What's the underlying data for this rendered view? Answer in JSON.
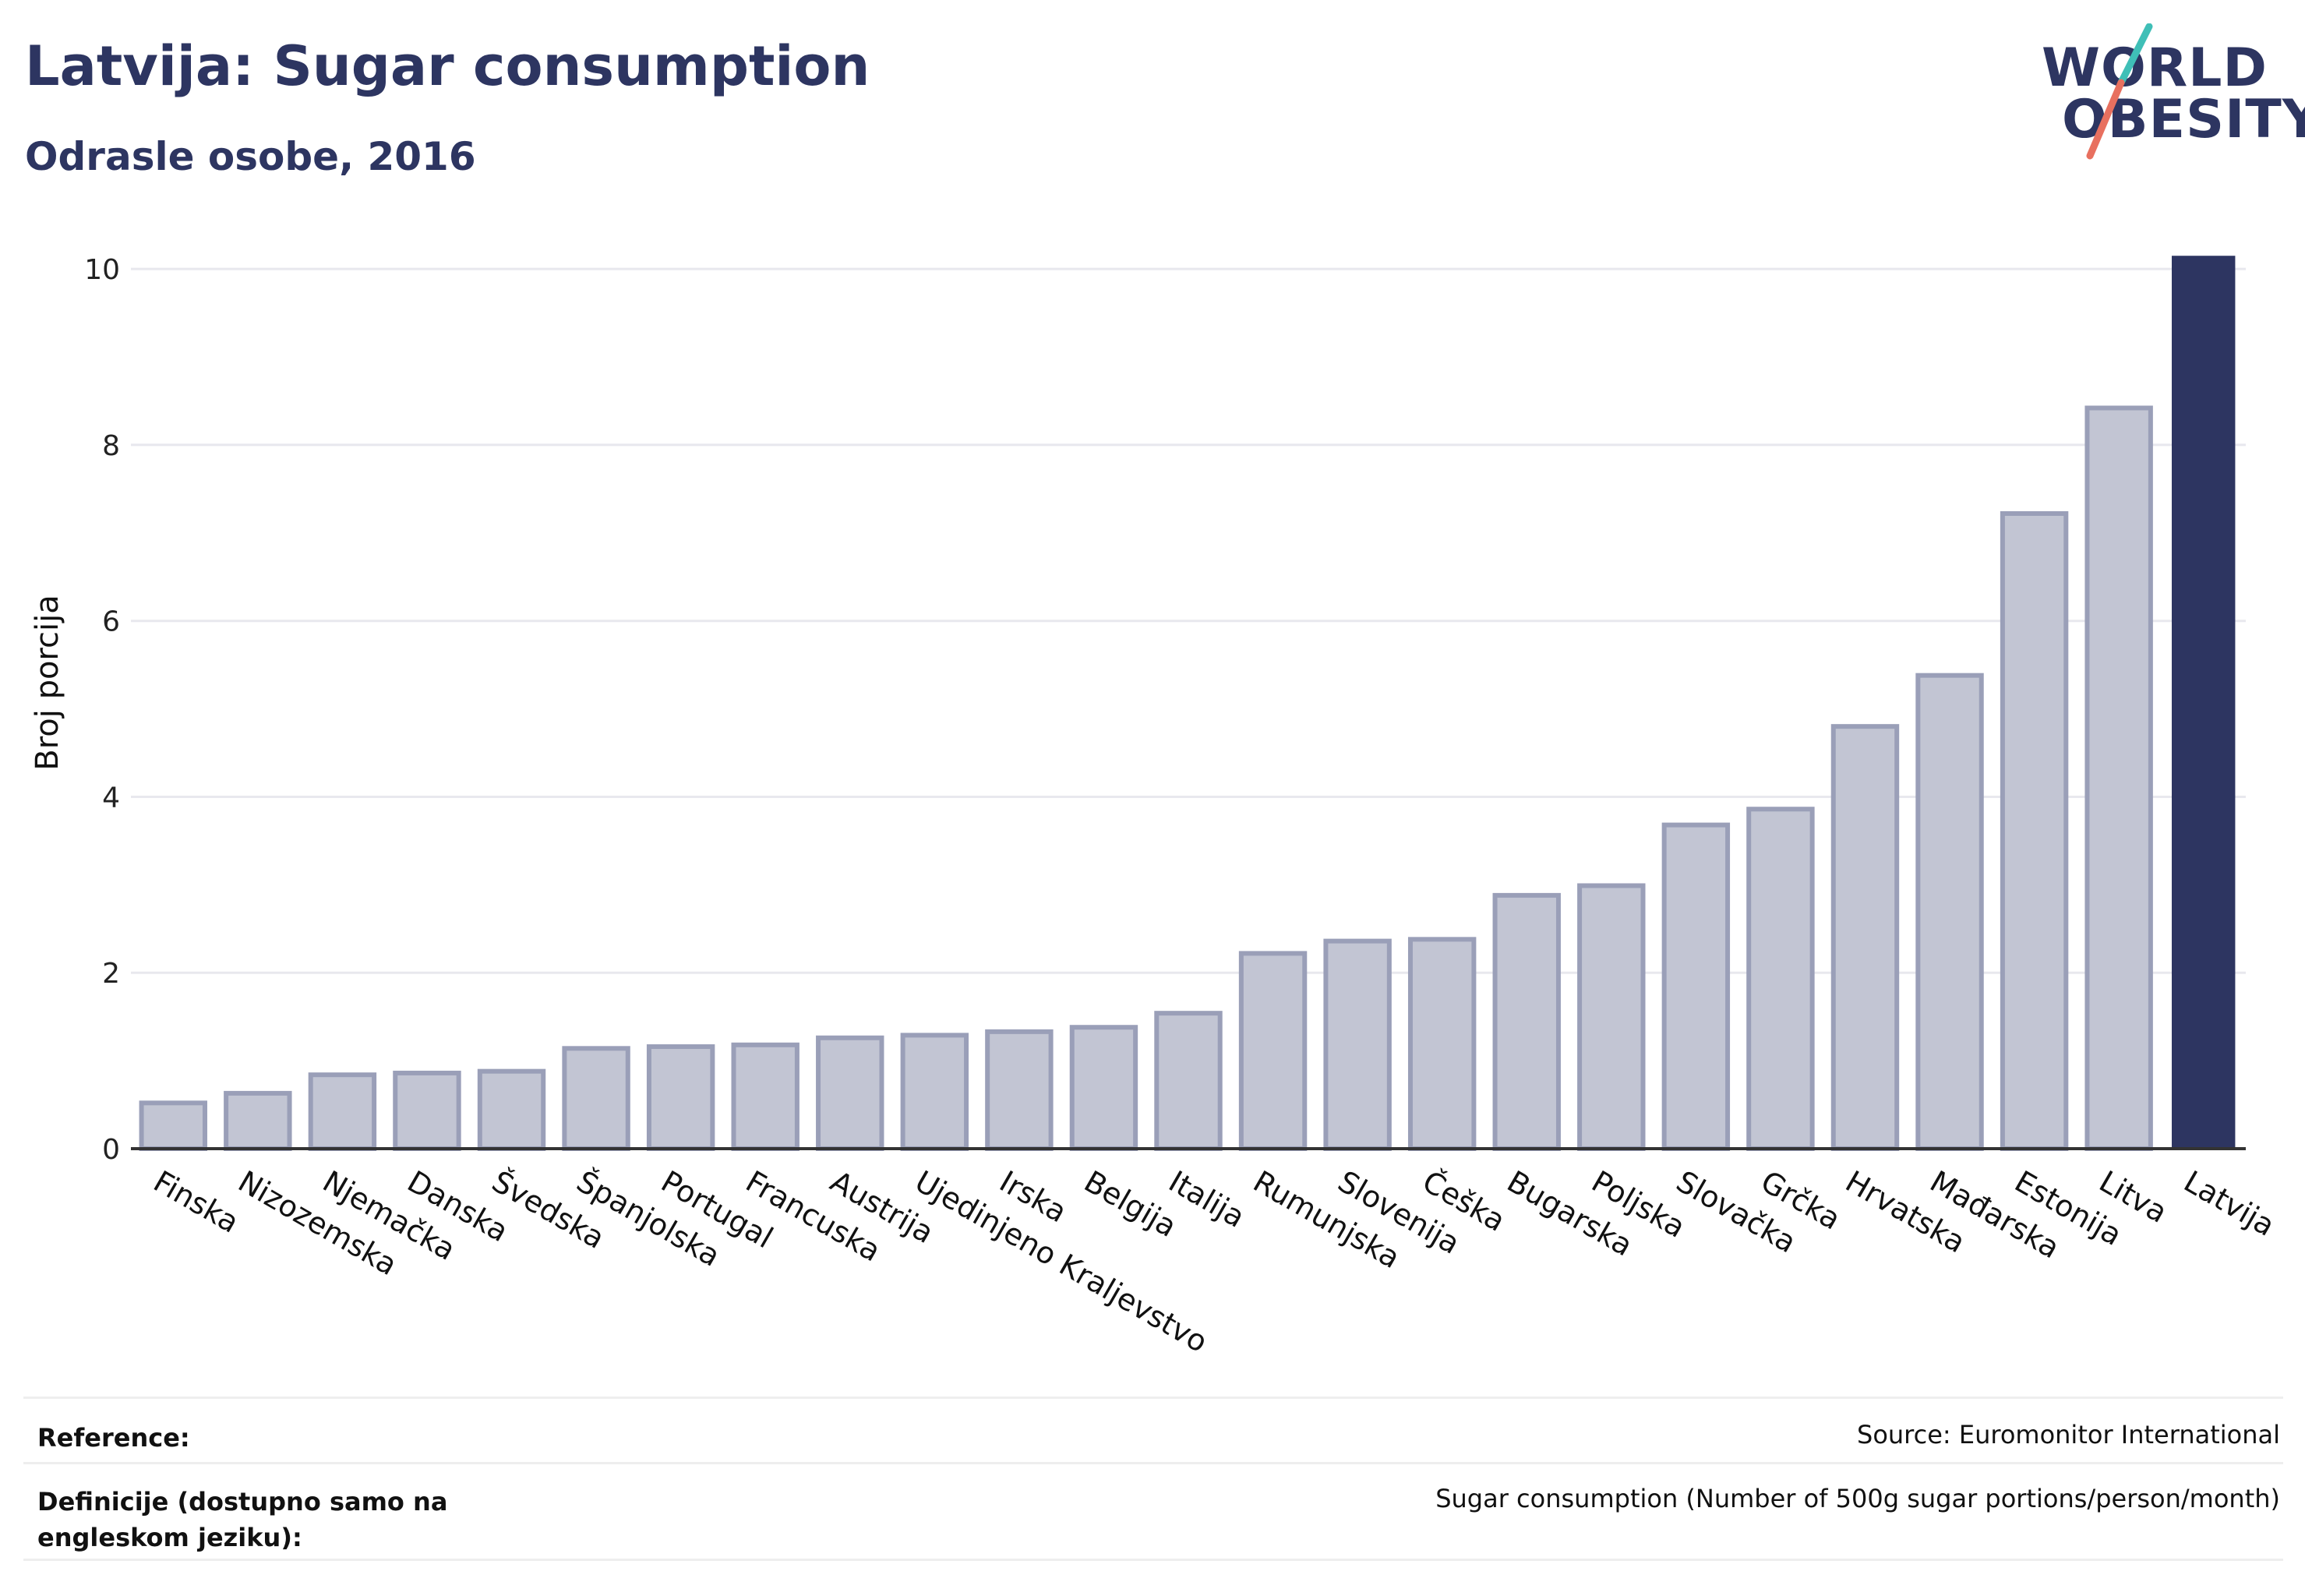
{
  "header": {
    "title": "Latvija: Sugar consumption",
    "subtitle": "Odrasle osobe, 2016"
  },
  "logo": {
    "line1": "WORLD",
    "line2": "OBESITY",
    "colors": {
      "text": "#2d3561",
      "slash_top": "#3fbfb7",
      "slash_bottom": "#e8705f"
    }
  },
  "chart_data": {
    "type": "bar",
    "title": "",
    "xlabel": "",
    "ylabel": "Broj porcija",
    "ylim": [
      0,
      10.4
    ],
    "yticks": [
      0,
      2,
      4,
      6,
      8,
      10
    ],
    "grid": true,
    "categories": [
      "Finska",
      "Nizozemska",
      "Njemačka",
      "Danska",
      "Švedska",
      "Španjolska",
      "Portugal",
      "Francuska",
      "Austrija",
      "Ujedinjeno Kraljevstvo",
      "Irska",
      "Belgija",
      "Italija",
      "Rumunjska",
      "Slovenija",
      "Češka",
      "Bugarska",
      "Poljska",
      "Slovačka",
      "Grčka",
      "Hrvatska",
      "Mađarska",
      "Estonija",
      "Litva",
      "Latvija"
    ],
    "values": [
      0.52,
      0.63,
      0.84,
      0.86,
      0.88,
      1.14,
      1.16,
      1.18,
      1.26,
      1.29,
      1.33,
      1.38,
      1.54,
      2.22,
      2.36,
      2.38,
      2.88,
      2.99,
      3.68,
      3.86,
      4.8,
      5.38,
      7.22,
      8.42,
      10.15
    ],
    "highlight": "Latvija",
    "colors": {
      "bar": "#c2c5d3",
      "bar_border": "#9a9fb8",
      "highlight": "#2d3561",
      "grid": "#e8e8ee",
      "axis": "#333333"
    }
  },
  "footer": {
    "reference_label": "Reference:",
    "reference_value": "Source: Euromonitor International",
    "definition_label": "Definicije (dostupno samo na engleskom jeziku):",
    "definition_value": "Sugar consumption (Number of 500g sugar portions/person/month)"
  }
}
